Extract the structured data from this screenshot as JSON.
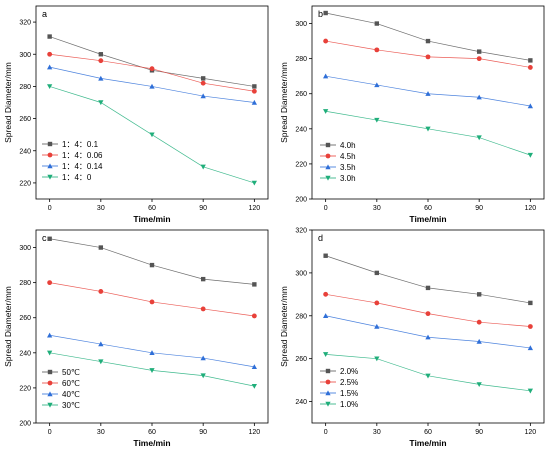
{
  "chart_data": [
    {
      "type": "line",
      "panel_label": "a",
      "xlabel": "Time/min",
      "ylabel": "Spread Diameter/mm",
      "x": [
        0,
        30,
        60,
        90,
        120
      ],
      "xticks": [
        "0",
        "30",
        "60",
        "90",
        "120"
      ],
      "ylim": [
        210,
        330
      ],
      "yticks": [
        "220",
        "240",
        "260",
        "280",
        "300",
        "320"
      ],
      "legend_position": "middle-left",
      "series": [
        {
          "name": "1：4：0.1",
          "color": "#555555",
          "marker": "square",
          "values": [
            311,
            300,
            290,
            285,
            280
          ]
        },
        {
          "name": "1：4：0.06",
          "color": "#e8413a",
          "marker": "circle",
          "values": [
            300,
            296,
            291,
            282,
            277
          ]
        },
        {
          "name": "1：4：0.14",
          "color": "#2f6fd8",
          "marker": "triangle-up",
          "values": [
            292,
            285,
            280,
            274,
            270
          ]
        },
        {
          "name": "1：4：0",
          "color": "#1fae7a",
          "marker": "triangle-down",
          "values": [
            280,
            270,
            250,
            230,
            220
          ]
        }
      ]
    },
    {
      "type": "line",
      "panel_label": "b",
      "xlabel": "Time/min",
      "ylabel": "Spread Diameter/mm",
      "x": [
        0,
        30,
        60,
        90,
        120
      ],
      "xticks": [
        "0",
        "30",
        "60",
        "90",
        "120"
      ],
      "ylim": [
        200,
        310
      ],
      "yticks": [
        "200",
        "220",
        "240",
        "260",
        "280",
        "300"
      ],
      "legend_position": "bottom-left",
      "series": [
        {
          "name": "4.0h",
          "color": "#555555",
          "marker": "square",
          "values": [
            306,
            300,
            290,
            284,
            279
          ]
        },
        {
          "name": "4.5h",
          "color": "#e8413a",
          "marker": "circle",
          "values": [
            290,
            285,
            281,
            280,
            275
          ]
        },
        {
          "name": "3.5h",
          "color": "#2f6fd8",
          "marker": "triangle-up",
          "values": [
            270,
            265,
            260,
            258,
            253
          ]
        },
        {
          "name": "3.0h",
          "color": "#1fae7a",
          "marker": "triangle-down",
          "values": [
            250,
            245,
            240,
            235,
            225
          ]
        }
      ]
    },
    {
      "type": "line",
      "panel_label": "c",
      "xlabel": "Time/min",
      "ylabel": "Spread Diameter/mm",
      "x": [
        0,
        30,
        60,
        90,
        120
      ],
      "xticks": [
        "0",
        "30",
        "60",
        "90",
        "120"
      ],
      "ylim": [
        200,
        310
      ],
      "yticks": [
        "200",
        "220",
        "240",
        "260",
        "280",
        "300"
      ],
      "legend_position": "bottom-left",
      "series": [
        {
          "name": "50℃",
          "color": "#555555",
          "marker": "square",
          "values": [
            305,
            300,
            290,
            282,
            279
          ]
        },
        {
          "name": "60℃",
          "color": "#e8413a",
          "marker": "circle",
          "values": [
            280,
            275,
            269,
            265,
            261
          ]
        },
        {
          "name": "40℃",
          "color": "#2f6fd8",
          "marker": "triangle-up",
          "values": [
            250,
            245,
            240,
            237,
            232
          ]
        },
        {
          "name": "30℃",
          "color": "#1fae7a",
          "marker": "triangle-down",
          "values": [
            240,
            235,
            230,
            227,
            221
          ]
        }
      ]
    },
    {
      "type": "line",
      "panel_label": "d",
      "xlabel": "Time/min",
      "ylabel": "Spread Diameter/mm",
      "x": [
        0,
        30,
        60,
        90,
        120
      ],
      "xticks": [
        "0",
        "30",
        "60",
        "90",
        "120"
      ],
      "ylim": [
        230,
        320
      ],
      "yticks": [
        "240",
        "260",
        "280",
        "300",
        "320"
      ],
      "legend_position": "bottom-left",
      "series": [
        {
          "name": "2.0%",
          "color": "#555555",
          "marker": "square",
          "values": [
            308,
            300,
            293,
            290,
            286
          ]
        },
        {
          "name": "2.5%",
          "color": "#e8413a",
          "marker": "circle",
          "values": [
            290,
            286,
            281,
            277,
            275
          ]
        },
        {
          "name": "1.5%",
          "color": "#2f6fd8",
          "marker": "triangle-up",
          "values": [
            280,
            275,
            270,
            268,
            265
          ]
        },
        {
          "name": "1.0%",
          "color": "#1fae7a",
          "marker": "triangle-down",
          "values": [
            262,
            260,
            252,
            248,
            245
          ]
        }
      ]
    }
  ]
}
